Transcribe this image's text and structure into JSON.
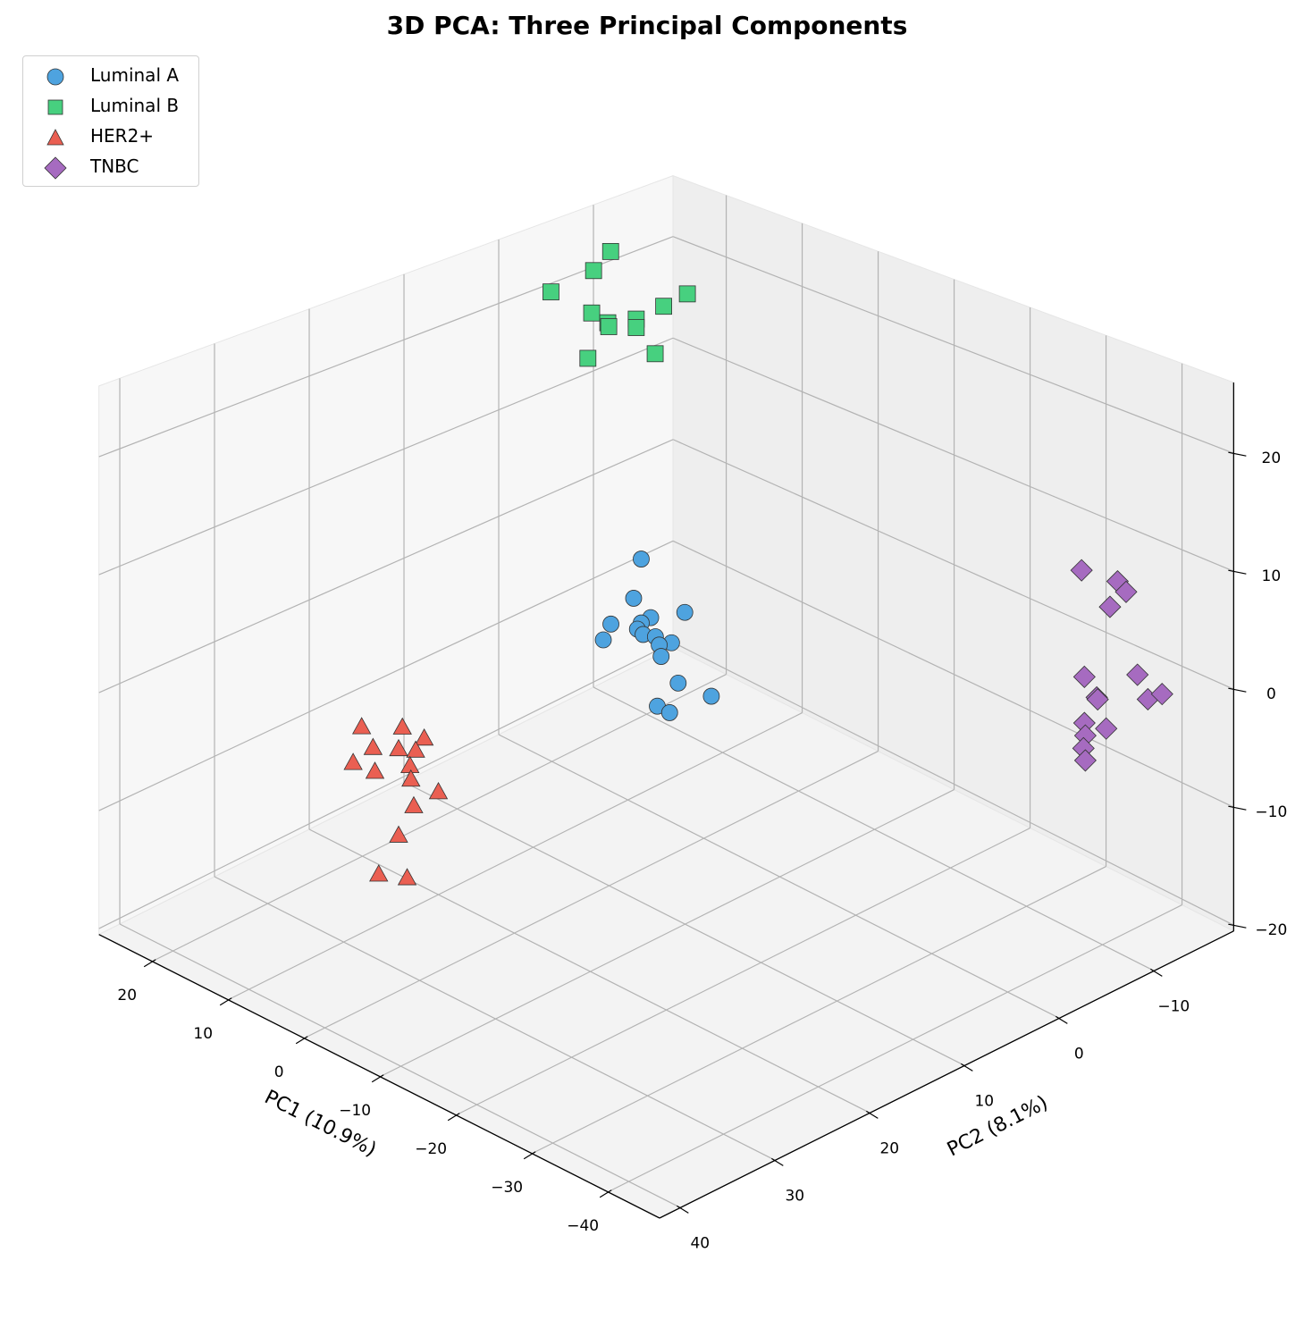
{
  "chart_data": {
    "type": "scatter",
    "projection": "3d",
    "title": "3D PCA: Three Principal Components",
    "xlabel": "PC1 (10.9%)",
    "ylabel": "PC2 (8.1%)",
    "xlim": [
      -46.8,
      27
    ],
    "ylim": [
      -18.4,
      42.2
    ],
    "zlim": [
      -20.5,
      26
    ],
    "xticks": [
      20,
      10,
      0,
      -10,
      -20,
      -30,
      -40
    ],
    "yticks": [
      -10,
      0,
      10,
      20,
      30,
      40
    ],
    "zticks": [
      -20,
      -10,
      0,
      10,
      20
    ],
    "grid": true,
    "legend_position": "top-left",
    "series": [
      {
        "name": "Luminal A",
        "marker": "circle",
        "color": "#4ea3df",
        "points": [
          [
            5,
            2.6,
            3.8
          ],
          [
            5,
            3.4,
            0.6
          ],
          [
            5,
            -2.0,
            -2.7
          ],
          [
            5,
            1.6,
            -1.8
          ],
          [
            5,
            5.8,
            -0.8
          ],
          [
            5,
            2.6,
            -1.9
          ],
          [
            5,
            3.0,
            -2.3
          ],
          [
            5,
            2.4,
            -3.0
          ],
          [
            5,
            1.1,
            -3.7
          ],
          [
            5,
            -0.6,
            -4.9
          ],
          [
            5,
            6.6,
            -1.9
          ],
          [
            5,
            0.7,
            -4.6
          ],
          [
            5,
            0.5,
            -5.7
          ],
          [
            5,
            -1.3,
            -8.8
          ],
          [
            5,
            -4.8,
            -11.4
          ],
          [
            5,
            0.9,
            -10.0
          ],
          [
            5,
            -0.4,
            -11.1
          ]
        ]
      },
      {
        "name": "Luminal B",
        "marker": "square",
        "color": "#47d07f",
        "points": [
          [
            20,
            -6.2,
            24.7
          ],
          [
            20,
            -4.4,
            23.5
          ],
          [
            20,
            0.1,
            23.0
          ],
          [
            20,
            -14.3,
            17.9
          ],
          [
            20,
            -11.8,
            17.6
          ],
          [
            20,
            -4.2,
            19.6
          ],
          [
            20,
            -8.9,
            17.4
          ],
          [
            20,
            -5.9,
            18.1
          ],
          [
            20,
            -8.9,
            16.6
          ],
          [
            20,
            -6.0,
            17.7
          ],
          [
            20,
            -10.9,
            13.4
          ],
          [
            20,
            -3.8,
            15.5
          ]
        ]
      },
      {
        "name": "HER2+",
        "marker": "triangle",
        "color": "#ea5f52",
        "points": [
          [
            10,
            28.1,
            -3.0
          ],
          [
            10,
            23.8,
            -4.6
          ],
          [
            10,
            21.5,
            -6.4
          ],
          [
            10,
            26.9,
            -5.2
          ],
          [
            10,
            24.2,
            -6.3
          ],
          [
            10,
            22.4,
            -7.1
          ],
          [
            10,
            29.0,
            -5.7
          ],
          [
            10,
            23.0,
            -8.2
          ],
          [
            10,
            26.7,
            -7.3
          ],
          [
            10,
            22.9,
            -9.4
          ],
          [
            10,
            20.0,
            -11.6
          ],
          [
            10,
            22.6,
            -11.8
          ],
          [
            10,
            24.2,
            -13.7
          ],
          [
            10,
            26.3,
            -16.2
          ],
          [
            10,
            23.3,
            -17.7
          ]
        ]
      },
      {
        "name": "TNBC",
        "marker": "diamond",
        "color": "#a66bc0",
        "points": [
          [
            -38,
            -9.4,
            10.7
          ],
          [
            -38,
            -13.2,
            8.5
          ],
          [
            -38,
            -14.1,
            7.3
          ],
          [
            -38,
            -12.4,
            6.6
          ],
          [
            -38,
            -9.7,
            1.6
          ],
          [
            -38,
            -15.3,
            -0.2
          ],
          [
            -38,
            -11.0,
            -0.6
          ],
          [
            -38,
            -11.1,
            -0.8
          ],
          [
            -38,
            -16.4,
            -2.7
          ],
          [
            -38,
            -17.9,
            -2.8
          ],
          [
            -38,
            -9.7,
            -2.3
          ],
          [
            -38,
            -12.0,
            -3.6
          ],
          [
            -38,
            -9.8,
            -3.4
          ],
          [
            -38,
            -9.6,
            -4.4
          ],
          [
            -38,
            -9.8,
            -5.5
          ]
        ]
      }
    ]
  }
}
